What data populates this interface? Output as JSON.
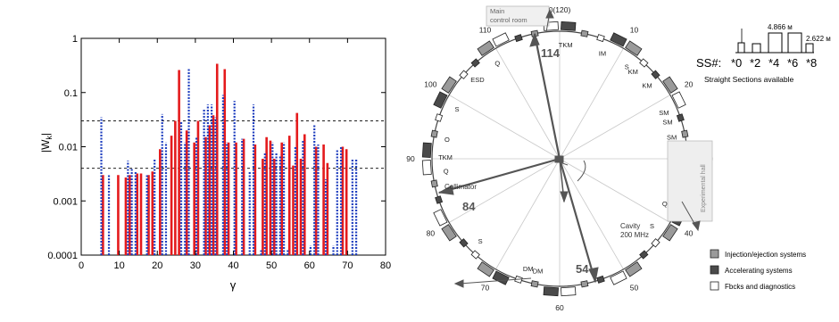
{
  "chart_data": {
    "type": "bar",
    "title": "",
    "xlabel": "γ",
    "ylabel_main": "|W",
    "ylabel_sub": "k",
    "ylabel_end": "|",
    "log_y": true,
    "xlim": [
      0,
      80
    ],
    "ylim": [
      0.0001,
      1
    ],
    "x_ticks": [
      "0",
      "10",
      "20",
      "30",
      "40",
      "50",
      "60",
      "70",
      "80"
    ],
    "y_ticks": [
      "0.0001",
      "0.001",
      "0.01",
      "0.1",
      "1"
    ],
    "reference_lines": [
      0.03,
      0.004
    ],
    "series": [
      {
        "color": "#e41a1c",
        "style": "solid",
        "points": [
          [
            6,
            0.003
          ],
          [
            10,
            0.003
          ],
          [
            12,
            0.0027
          ],
          [
            13,
            0.003
          ],
          [
            15,
            0.0032
          ],
          [
            16,
            0.0032
          ],
          [
            18,
            0.003
          ],
          [
            19,
            0.0035
          ],
          [
            21,
            0.009
          ],
          [
            24,
            0.016
          ],
          [
            25,
            0.03
          ],
          [
            26,
            0.26
          ],
          [
            28,
            0.02
          ],
          [
            30,
            0.012
          ],
          [
            31,
            0.03
          ],
          [
            33,
            0.015
          ],
          [
            34,
            0.025
          ],
          [
            35,
            0.038
          ],
          [
            36,
            0.34
          ],
          [
            38,
            0.27
          ],
          [
            39,
            0.012
          ],
          [
            41,
            0.012
          ],
          [
            43,
            0.014
          ],
          [
            46,
            0.011
          ],
          [
            48,
            0.006
          ],
          [
            49,
            0.015
          ],
          [
            50,
            0.013
          ],
          [
            51,
            0.006
          ],
          [
            53,
            0.012
          ],
          [
            55,
            0.016
          ],
          [
            56,
            0.0045
          ],
          [
            57,
            0.042
          ],
          [
            58,
            0.006
          ],
          [
            59,
            0.017
          ],
          [
            62,
            0.01
          ],
          [
            64,
            0.011
          ],
          [
            65,
            0.005
          ],
          [
            69,
            0.01
          ],
          [
            70,
            0.009
          ]
        ]
      },
      {
        "color": "#1f3fbf",
        "style": "dashed",
        "points": [
          [
            5,
            0.035
          ],
          [
            7,
            0.003
          ],
          [
            12,
            0.0055
          ],
          [
            13,
            0.004
          ],
          [
            14,
            0.0035
          ],
          [
            17,
            0.003
          ],
          [
            19,
            0.006
          ],
          [
            21,
            0.04
          ],
          [
            22,
            0.012
          ],
          [
            26,
            0.03
          ],
          [
            27,
            0.012
          ],
          [
            28,
            0.28
          ],
          [
            30,
            0.015
          ],
          [
            32,
            0.05
          ],
          [
            33,
            0.06
          ],
          [
            34,
            0.06
          ],
          [
            35,
            0.035
          ],
          [
            37,
            0.09
          ],
          [
            38,
            0.012
          ],
          [
            40,
            0.07
          ],
          [
            42,
            0.014
          ],
          [
            44,
            0.0035
          ],
          [
            45,
            0.06
          ],
          [
            47,
            0.00013
          ],
          [
            48,
            0.008
          ],
          [
            50,
            0.012
          ],
          [
            51,
            0.008
          ],
          [
            52,
            0.007
          ],
          [
            53,
            0.012
          ],
          [
            54,
            0.00013
          ],
          [
            56,
            0.01
          ],
          [
            58,
            0.013
          ],
          [
            60,
            0.00015
          ],
          [
            61,
            0.025
          ],
          [
            62,
            0.011
          ],
          [
            64,
            0.0025
          ],
          [
            66,
            0.00015
          ],
          [
            67,
            0.009
          ],
          [
            68,
            0.01
          ],
          [
            71,
            0.006
          ],
          [
            72,
            0.006
          ]
        ]
      }
    ]
  },
  "ring": {
    "angle_labels": [
      {
        "text": "0(120)",
        "deg": 0
      },
      {
        "text": "10",
        "deg": 30
      },
      {
        "text": "20",
        "deg": 60
      },
      {
        "text": "30",
        "deg": 90
      },
      {
        "text": "40",
        "deg": 120
      },
      {
        "text": "50",
        "deg": 150
      },
      {
        "text": "60",
        "deg": 180
      },
      {
        "text": "70",
        "deg": 210
      },
      {
        "text": "80",
        "deg": 240
      },
      {
        "text": "90",
        "deg": 270
      },
      {
        "text": "100",
        "deg": 300
      },
      {
        "text": "110",
        "deg": 330
      }
    ],
    "element_labels": [
      {
        "text": "TKM",
        "deg": 3
      },
      {
        "text": "IM",
        "deg": 22
      },
      {
        "text": "S",
        "deg": 36
      },
      {
        "text": "KM",
        "deg": 40
      },
      {
        "text": "KM",
        "deg": 50
      },
      {
        "text": "SM",
        "deg": 66
      },
      {
        "text": "SM",
        "deg": 71
      },
      {
        "text": "SM",
        "deg": 79
      },
      {
        "text": "DM",
        "deg": 90
      },
      {
        "text": "O",
        "deg": 103
      },
      {
        "text": "Q",
        "deg": 113
      },
      {
        "text": "S",
        "deg": 126
      },
      {
        "text": "DM",
        "deg": 191
      },
      {
        "text": "DM",
        "deg": 196
      },
      {
        "text": "S",
        "deg": 224
      },
      {
        "text": "Q",
        "deg": 264
      },
      {
        "text": "TKM",
        "deg": 271
      },
      {
        "text": "O",
        "deg": 280
      },
      {
        "text": "S",
        "deg": 296
      },
      {
        "text": "ESD",
        "deg": 314
      },
      {
        "text": "Q",
        "deg": 327
      }
    ],
    "arrow_labels": {
      "a114": "114",
      "a84": "84",
      "a54": "54"
    },
    "main_control": [
      "Main",
      "control room"
    ],
    "collimator": "Collimator",
    "cavity": [
      "Cavity",
      "200 MHz"
    ],
    "exp_hall": "Experimental hall"
  },
  "straight_sections": {
    "long_label": "4.866 м",
    "short_label": "2.622 м",
    "ss_label": "SS#:",
    "ss_numbers": [
      "*0",
      "*2",
      "*4",
      "*6",
      "*8"
    ],
    "available": "Straight Sections available"
  },
  "legend": [
    {
      "label": "Injection/ejection systems",
      "fill": "#9a9a9a"
    },
    {
      "label": "Accelerating systems",
      "fill": "#4a4a4a"
    },
    {
      "label": "Fbcks  and diagnostics",
      "fill": "#ffffff"
    }
  ]
}
